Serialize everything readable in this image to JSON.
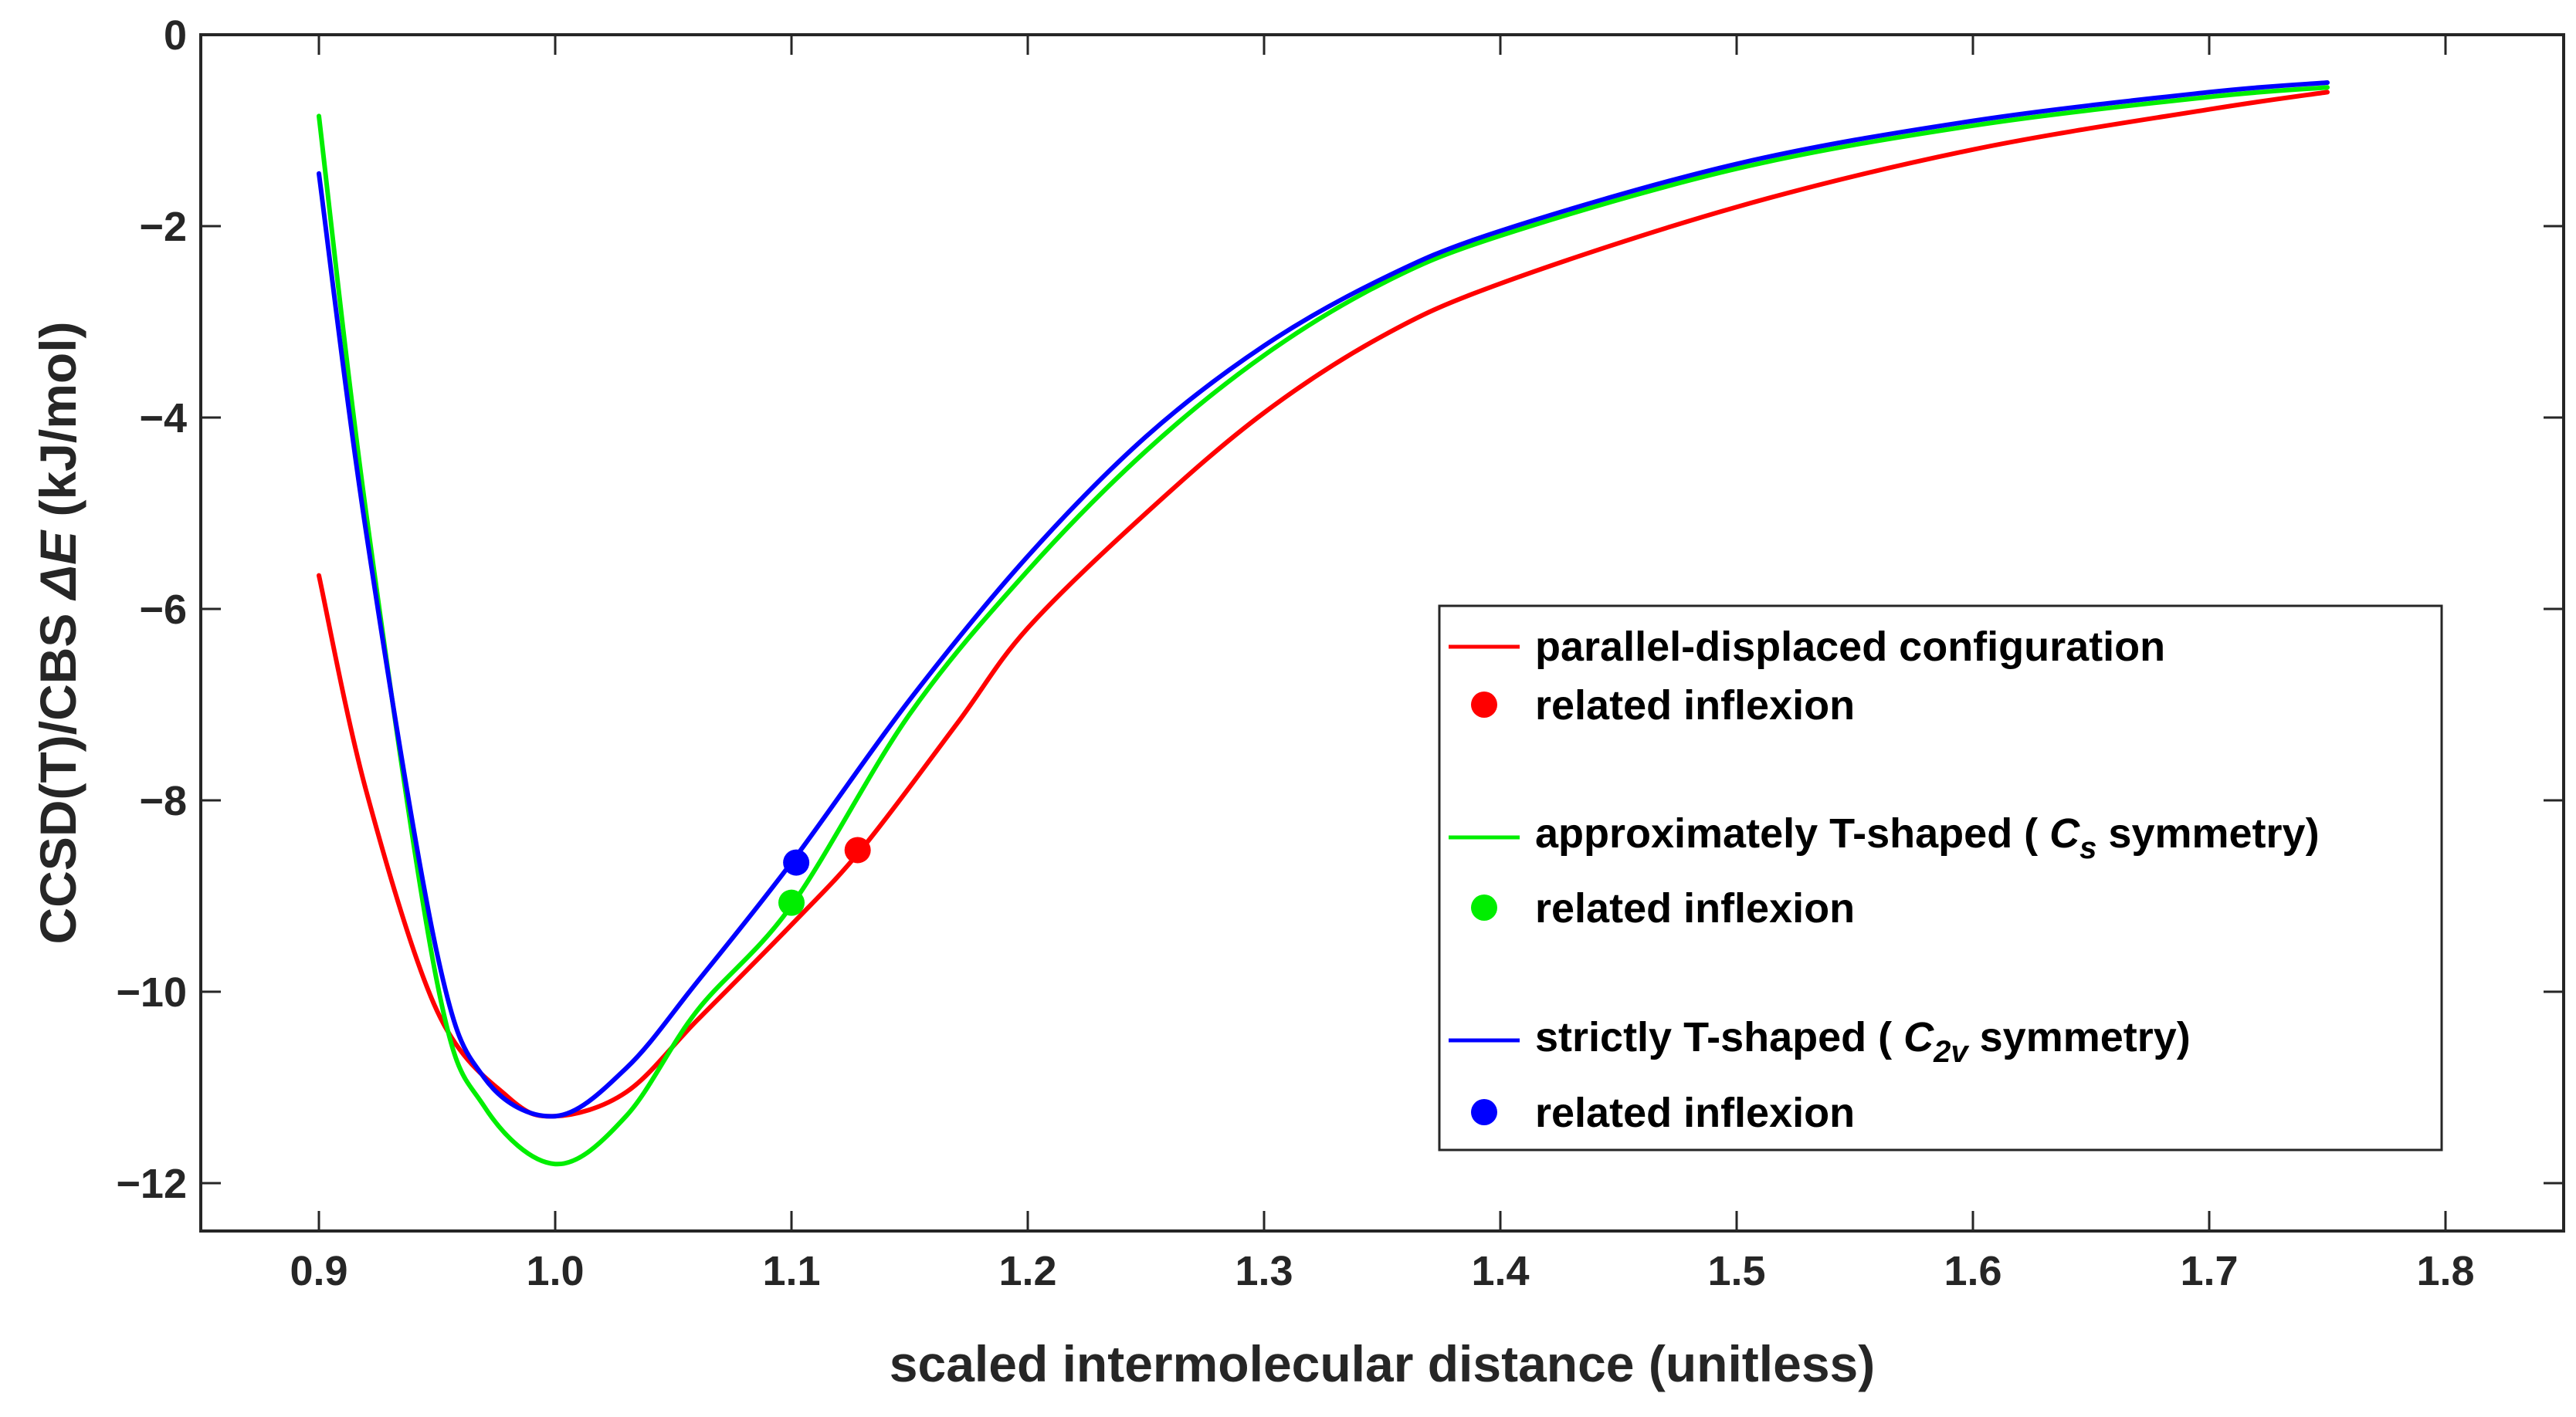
{
  "chart_data": {
    "type": "line",
    "title": "",
    "xlabel": "scaled intermolecular distance (unitless)",
    "ylabel_prefix": "CCSD(T)/CBS ",
    "ylabel_symbol": "ΔE",
    "ylabel_suffix": " (kJ/mol)",
    "xlim": [
      0.85,
      1.85
    ],
    "ylim": [
      -12.5,
      0
    ],
    "xticks": [
      0.9,
      1.0,
      1.1,
      1.2,
      1.3,
      1.4,
      1.5,
      1.6,
      1.7,
      1.8
    ],
    "xtick_labels": [
      "0.9",
      "1.0",
      "1.1",
      "1.2",
      "1.3",
      "1.4",
      "1.5",
      "1.6",
      "1.7",
      "1.8"
    ],
    "yticks": [
      0,
      -2,
      -4,
      -6,
      -8,
      -10,
      -12
    ],
    "ytick_labels": [
      "0",
      "−2",
      "−4",
      "−6",
      "−8",
      "−10",
      "−12"
    ],
    "grid": false,
    "legend_position": "bottom-right",
    "series": [
      {
        "name": "parallel-displaced configuration",
        "color": "#ff0000",
        "x": [
          0.9,
          0.92,
          0.95,
          0.98,
          1.0,
          1.03,
          1.06,
          1.1,
          1.13,
          1.17,
          1.2,
          1.25,
          1.3,
          1.35,
          1.4,
          1.5,
          1.6,
          1.7,
          1.75
        ],
        "y": [
          -5.65,
          -7.9,
          -10.2,
          -11.1,
          -11.3,
          -11.05,
          -10.3,
          -9.3,
          -8.5,
          -7.2,
          -6.2,
          -5.0,
          -3.95,
          -3.15,
          -2.6,
          -1.8,
          -1.2,
          -0.78,
          -0.6
        ],
        "inflexion": {
          "label": "related inflexion",
          "x": 1.128,
          "y": -8.52
        }
      },
      {
        "name": "approximately T-shaped (Cs symmetry)",
        "legend_main": "approximately T-shaped ( ",
        "legend_sym": "C",
        "legend_sub": "s",
        "legend_tail": " symmetry)",
        "color": "#00ee00",
        "x": [
          0.9,
          0.92,
          0.95,
          0.97,
          1.0,
          1.03,
          1.06,
          1.1,
          1.15,
          1.2,
          1.25,
          1.3,
          1.35,
          1.4,
          1.5,
          1.6,
          1.7,
          1.75
        ],
        "y": [
          -0.85,
          -5.0,
          -9.9,
          -11.2,
          -11.8,
          -11.3,
          -10.2,
          -9.1,
          -7.1,
          -5.6,
          -4.35,
          -3.35,
          -2.6,
          -2.1,
          -1.4,
          -0.95,
          -0.65,
          -0.55
        ],
        "inflexion": {
          "label": "related inflexion",
          "x": 1.1,
          "y": -9.07
        }
      },
      {
        "name": "strictly T-shaped (C2v symmetry)",
        "legend_main": "strictly T-shaped ( ",
        "legend_sym": "C",
        "legend_sub": "2v",
        "legend_tail": " symmetry)",
        "color": "#0000ff",
        "x": [
          0.9,
          0.92,
          0.95,
          0.97,
          1.0,
          1.03,
          1.06,
          1.1,
          1.15,
          1.2,
          1.25,
          1.3,
          1.35,
          1.4,
          1.5,
          1.6,
          1.7,
          1.75
        ],
        "y": [
          -1.45,
          -5.2,
          -9.6,
          -10.9,
          -11.3,
          -10.8,
          -9.9,
          -8.65,
          -6.95,
          -5.45,
          -4.2,
          -3.25,
          -2.55,
          -2.05,
          -1.35,
          -0.9,
          -0.6,
          -0.5
        ],
        "inflexion": {
          "label": "related inflexion",
          "x": 1.102,
          "y": -8.65
        }
      }
    ]
  }
}
